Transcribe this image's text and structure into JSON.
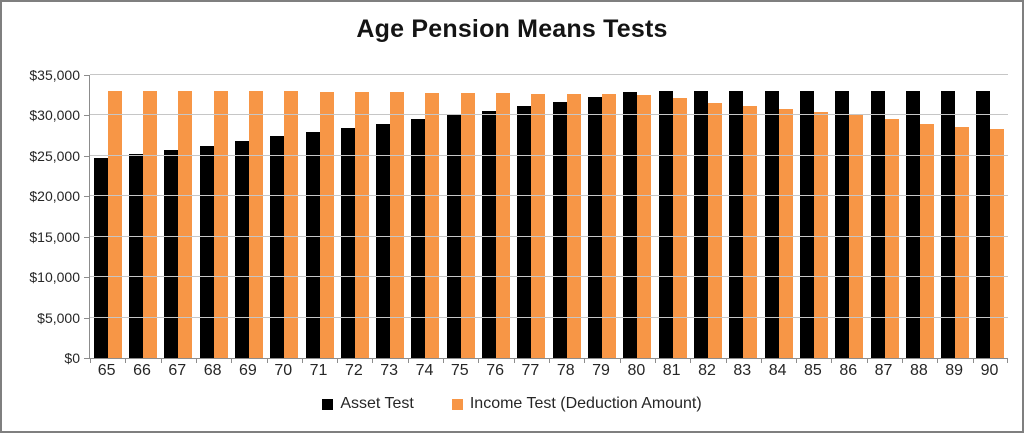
{
  "title": "Age Pension Means Tests",
  "colors": {
    "grid": "#C6C6C6",
    "axis": "#8C8C8C",
    "text": "#262626",
    "frame_border": "#7F7F7F",
    "asset_test": "#000000",
    "income_test": "#F79646"
  },
  "chart_data": {
    "type": "bar",
    "title": "Age Pension Means Tests",
    "xlabel": "",
    "ylabel": "",
    "categories": [
      "65",
      "66",
      "67",
      "68",
      "69",
      "70",
      "71",
      "72",
      "73",
      "74",
      "75",
      "76",
      "77",
      "78",
      "79",
      "80",
      "81",
      "82",
      "83",
      "84",
      "85",
      "86",
      "87",
      "88",
      "89",
      "90"
    ],
    "series": [
      {
        "name": "Asset Test",
        "color": "#000000",
        "values": [
          24700,
          25200,
          25700,
          26200,
          26800,
          27400,
          27900,
          28500,
          29000,
          29500,
          30100,
          30600,
          31200,
          31700,
          32300,
          32900,
          33000,
          33000,
          33000,
          33000,
          33000,
          33000,
          33000,
          33000,
          33000,
          33000
        ]
      },
      {
        "name": "Income Test (Deduction Amount)",
        "color": "#F79646",
        "values": [
          33000,
          33000,
          33000,
          33000,
          33000,
          33000,
          32900,
          32900,
          32900,
          32800,
          32800,
          32800,
          32700,
          32700,
          32600,
          32500,
          32100,
          31600,
          31200,
          30800,
          30400,
          30000,
          29500,
          29000,
          28600,
          28300
        ]
      }
    ],
    "ylim": [
      0,
      35000
    ],
    "ytick_step": 5000,
    "ytick_labels": [
      "$0",
      "$5,000",
      "$10,000",
      "$15,000",
      "$20,000",
      "$25,000",
      "$30,000",
      "$35,000"
    ],
    "grid": true,
    "legend_position": "bottom"
  }
}
